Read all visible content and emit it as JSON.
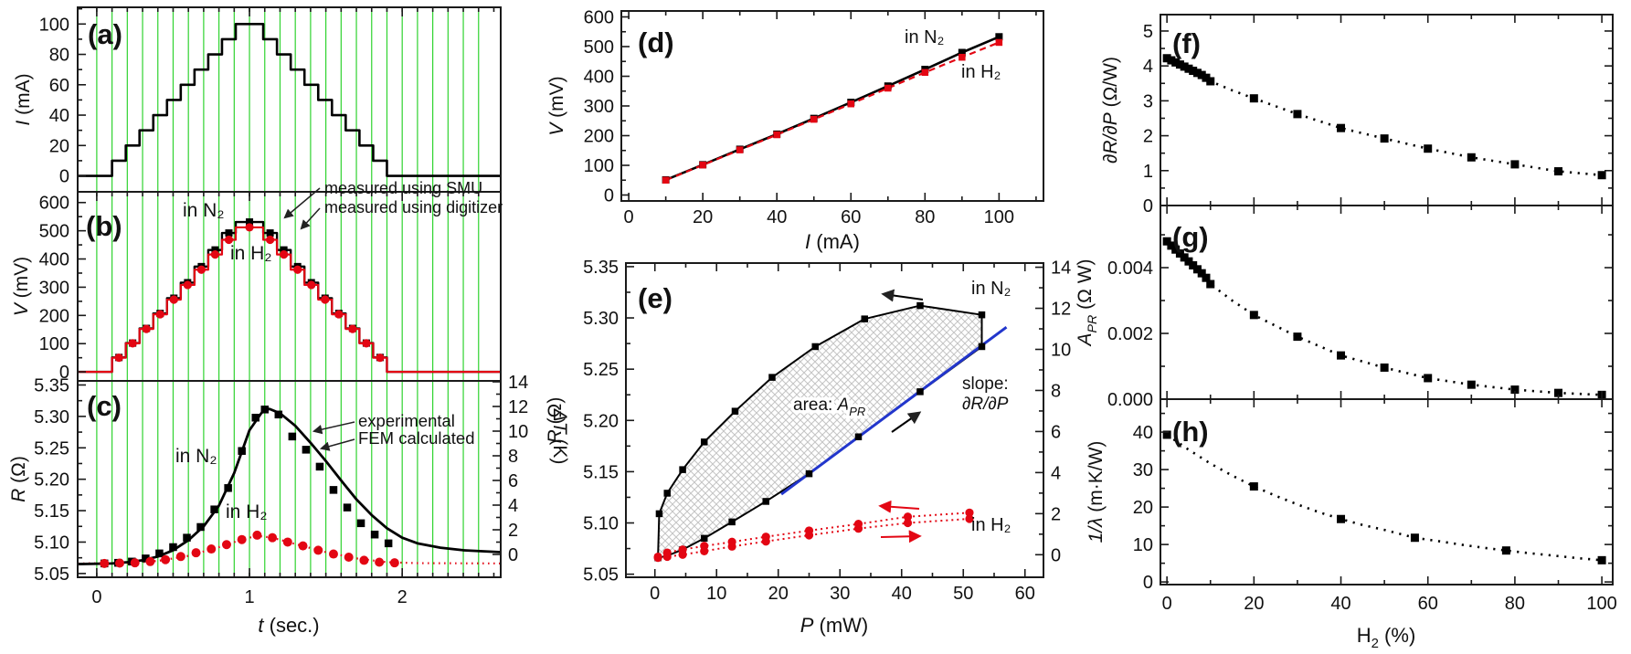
{
  "colors": {
    "black": "#000000",
    "red": "#e30613",
    "green": "#2fd32f",
    "blue": "#2236cc",
    "hatch": "#c4c4c4",
    "frame": "#1a1a1a"
  },
  "chart_data": [
    {
      "id": "a",
      "type": "line",
      "tag": "(a)",
      "ylabel": [
        {
          "t": "I",
          "i": 1
        },
        {
          "t": " (mA)"
        }
      ],
      "yticks": [
        "0",
        "20",
        "40",
        "60",
        "80",
        "100"
      ],
      "grid": "vertical-green",
      "step_times": [
        -0.125,
        0.1,
        0.19,
        0.28,
        0.37,
        0.46,
        0.55,
        0.64,
        0.73,
        0.82,
        0.91,
        1.09,
        1.18,
        1.27,
        1.36,
        1.45,
        1.54,
        1.63,
        1.72,
        1.81,
        1.9
      ],
      "t_end": 2.645,
      "values": [
        0,
        10,
        20,
        30,
        40,
        50,
        60,
        70,
        80,
        90,
        100,
        90,
        80,
        70,
        60,
        50,
        40,
        30,
        20,
        10,
        0
      ]
    },
    {
      "id": "b",
      "type": "line",
      "tag": "(b)",
      "ylabel": [
        {
          "t": "V",
          "i": 1
        },
        {
          "t": " (mV)"
        }
      ],
      "yticks": [
        "0",
        "100",
        "200",
        "300",
        "400",
        "500",
        "600"
      ],
      "grid": "vertical-green",
      "step_times": [
        -0.125,
        0.1,
        0.19,
        0.28,
        0.37,
        0.46,
        0.55,
        0.64,
        0.73,
        0.82,
        0.91,
        1.09,
        1.18,
        1.27,
        1.36,
        1.45,
        1.54,
        1.63,
        1.72,
        1.81,
        1.9
      ],
      "t_end": 2.645,
      "values_n2": [
        0,
        51,
        102,
        154,
        207,
        261,
        316,
        373,
        432,
        492,
        531,
        492,
        432,
        373,
        316,
        261,
        207,
        154,
        102,
        51,
        0
      ],
      "values_h2": [
        0,
        50,
        101,
        152,
        204,
        256,
        308,
        362,
        416,
        468,
        512,
        468,
        416,
        362,
        308,
        256,
        204,
        152,
        101,
        50,
        0
      ],
      "ann": {
        "n2": "in N₂",
        "h2": "in H₂",
        "smu": "measured using SMU",
        "dig": "measured using digitizer"
      }
    },
    {
      "id": "c",
      "type": "line",
      "tag": "(c)",
      "xlabel": [
        {
          "t": "t",
          "i": 1
        },
        {
          "t": " (sec.)"
        }
      ],
      "ylabel": [
        {
          "t": "R",
          "i": 1
        },
        {
          "t": " (Ω)"
        }
      ],
      "ylabel_right": [
        {
          "t": "ΔT",
          "i": 1
        },
        {
          "t": " (K)"
        }
      ],
      "xticks": [
        "0",
        "1",
        "2"
      ],
      "yticks": [
        "5.05",
        "5.10",
        "5.15",
        "5.20",
        "5.25",
        "5.30",
        "5.35"
      ],
      "yticks_right": [
        "0",
        "2",
        "4",
        "6",
        "8",
        "10",
        "12",
        "14"
      ],
      "grid": "vertical-green",
      "n2_line": [
        [
          -0.125,
          5.065
        ],
        [
          0.1,
          5.066
        ],
        [
          0.2,
          5.068
        ],
        [
          0.3,
          5.071
        ],
        [
          0.4,
          5.077
        ],
        [
          0.5,
          5.087
        ],
        [
          0.6,
          5.103
        ],
        [
          0.7,
          5.125
        ],
        [
          0.8,
          5.158
        ],
        [
          0.9,
          5.21
        ],
        [
          1.0,
          5.278
        ],
        [
          1.08,
          5.306
        ],
        [
          1.13,
          5.312
        ],
        [
          1.2,
          5.305
        ],
        [
          1.3,
          5.285
        ],
        [
          1.4,
          5.258
        ],
        [
          1.5,
          5.229
        ],
        [
          1.6,
          5.198
        ],
        [
          1.7,
          5.168
        ],
        [
          1.8,
          5.143
        ],
        [
          1.9,
          5.122
        ],
        [
          2.0,
          5.107
        ],
        [
          2.1,
          5.098
        ],
        [
          2.25,
          5.091
        ],
        [
          2.4,
          5.087
        ],
        [
          2.645,
          5.084
        ]
      ],
      "n2_points": [
        [
          0.05,
          5.066
        ],
        [
          0.14,
          5.067
        ],
        [
          0.23,
          5.069
        ],
        [
          0.32,
          5.074
        ],
        [
          0.41,
          5.082
        ],
        [
          0.5,
          5.092
        ],
        [
          0.59,
          5.107
        ],
        [
          0.68,
          5.124
        ],
        [
          0.77,
          5.152
        ],
        [
          0.86,
          5.186
        ],
        [
          0.95,
          5.245
        ],
        [
          1.04,
          5.298
        ],
        [
          1.1,
          5.311
        ],
        [
          1.19,
          5.303
        ],
        [
          1.28,
          5.268
        ],
        [
          1.37,
          5.247
        ],
        [
          1.46,
          5.22
        ],
        [
          1.55,
          5.183
        ],
        [
          1.64,
          5.155
        ],
        [
          1.73,
          5.13
        ],
        [
          1.82,
          5.112
        ],
        [
          1.91,
          5.098
        ]
      ],
      "h2_line": [
        [
          -0.125,
          5.066
        ],
        [
          0.2,
          5.0665
        ],
        [
          0.4,
          5.07
        ],
        [
          0.6,
          5.078
        ],
        [
          0.8,
          5.092
        ],
        [
          0.95,
          5.104
        ],
        [
          1.05,
          5.11
        ],
        [
          1.15,
          5.107
        ],
        [
          1.3,
          5.097
        ],
        [
          1.5,
          5.084
        ],
        [
          1.7,
          5.074
        ],
        [
          1.9,
          5.068
        ],
        [
          2.1,
          5.0665
        ],
        [
          2.645,
          5.066
        ]
      ],
      "h2_points": [
        [
          0.05,
          5.066
        ],
        [
          0.15,
          5.0665
        ],
        [
          0.25,
          5.067
        ],
        [
          0.35,
          5.069
        ],
        [
          0.45,
          5.072
        ],
        [
          0.55,
          5.077
        ],
        [
          0.65,
          5.083
        ],
        [
          0.75,
          5.089
        ],
        [
          0.85,
          5.096
        ],
        [
          0.95,
          5.104
        ],
        [
          1.05,
          5.111
        ],
        [
          1.15,
          5.107
        ],
        [
          1.25,
          5.1
        ],
        [
          1.35,
          5.094
        ],
        [
          1.45,
          5.087
        ],
        [
          1.55,
          5.081
        ],
        [
          1.65,
          5.076
        ],
        [
          1.75,
          5.071
        ],
        [
          1.85,
          5.068
        ],
        [
          1.95,
          5.067
        ]
      ],
      "ann": {
        "n2": "in N₂",
        "h2": "in H₂",
        "exp": "experimental",
        "fem": "FEM calculated"
      }
    },
    {
      "id": "d",
      "type": "line",
      "tag": "(d)",
      "xlabel": [
        {
          "t": "I",
          "i": 1
        },
        {
          "t": " (mA)"
        }
      ],
      "ylabel": [
        {
          "t": "V",
          "i": 1
        },
        {
          "t": " (mV)"
        }
      ],
      "xticks": [
        "0",
        "20",
        "40",
        "60",
        "80",
        "100"
      ],
      "yticks": [
        "0",
        "100",
        "200",
        "300",
        "400",
        "500",
        "600"
      ],
      "x": [
        10,
        20,
        30,
        40,
        50,
        60,
        70,
        80,
        90,
        100
      ],
      "v_n2": [
        51,
        102,
        154,
        205,
        258,
        312,
        367,
        423,
        480,
        533
      ],
      "v_h2": [
        50,
        101,
        152,
        203,
        255,
        307,
        360,
        413,
        464,
        514
      ],
      "ann": {
        "n2": "in N₂",
        "h2": "in H₂"
      }
    },
    {
      "id": "e",
      "type": "line",
      "tag": "(e)",
      "xlabel": [
        {
          "t": "P",
          "i": 1
        },
        {
          "t": " (mW)"
        }
      ],
      "ylabel": [
        {
          "t": "R",
          "i": 1
        },
        {
          "t": " (Ω)"
        }
      ],
      "xticks": [
        "0",
        "10",
        "20",
        "30",
        "40",
        "50",
        "60"
      ],
      "yticks": [
        "5.05",
        "5.10",
        "5.15",
        "5.20",
        "5.25",
        "5.30",
        "5.35"
      ],
      "yticks_right": [
        "0",
        "2",
        "4",
        "6",
        "8",
        "10",
        "12",
        "14"
      ],
      "n2_lower": [
        [
          0.5,
          5.066
        ],
        [
          2,
          5.068
        ],
        [
          4.5,
          5.074
        ],
        [
          8,
          5.085
        ],
        [
          12.5,
          5.101
        ],
        [
          18,
          5.121
        ],
        [
          25,
          5.148
        ],
        [
          33,
          5.184
        ],
        [
          43,
          5.228
        ],
        [
          53,
          5.272
        ]
      ],
      "n2_upper": [
        [
          53,
          5.303
        ],
        [
          43,
          5.312
        ],
        [
          34,
          5.299
        ],
        [
          26,
          5.272
        ],
        [
          19,
          5.242
        ],
        [
          13,
          5.209
        ],
        [
          8,
          5.179
        ],
        [
          4.5,
          5.152
        ],
        [
          2,
          5.129
        ],
        [
          0.7,
          5.109
        ]
      ],
      "blue_line": [
        [
          20.5,
          5.128
        ],
        [
          57,
          5.291
        ]
      ],
      "h2_lower": [
        [
          0.5,
          5.066
        ],
        [
          2,
          5.067
        ],
        [
          4.5,
          5.069
        ],
        [
          8,
          5.0725
        ],
        [
          12.5,
          5.077
        ],
        [
          18,
          5.082
        ],
        [
          25,
          5.088
        ],
        [
          33,
          5.0945
        ],
        [
          41,
          5.1
        ],
        [
          51,
          5.104
        ]
      ],
      "h2_upper": [
        [
          51,
          5.11
        ],
        [
          41,
          5.106
        ],
        [
          33,
          5.099
        ],
        [
          25,
          5.0925
        ],
        [
          18,
          5.0865
        ],
        [
          12.5,
          5.0815
        ],
        [
          8,
          5.0775
        ],
        [
          4.5,
          5.074
        ],
        [
          2,
          5.071
        ],
        [
          0.5,
          5.067
        ]
      ],
      "ann": {
        "n2": "in N₂",
        "h2": "in H₂",
        "slope1": "slope:",
        "slope2": [
          {
            "t": "∂R/∂P",
            "i": 1
          }
        ],
        "area": [
          {
            "t": "area: "
          },
          {
            "t": "A",
            "i": 1
          },
          {
            "t": "PR",
            "i": 1,
            "sub": 1
          }
        ]
      }
    },
    {
      "id": "f",
      "type": "scatter",
      "tag": "(f)",
      "ylabel": [
        {
          "t": "∂R/∂P",
          "i": 1
        },
        {
          "t": " (Ω/W)"
        }
      ],
      "yticks": [
        "0",
        "1",
        "2",
        "3",
        "4",
        "5"
      ],
      "x_dense": [
        0,
        1,
        2,
        3,
        4,
        5,
        6,
        7,
        8,
        9,
        10
      ],
      "v_dense": [
        4.22,
        4.16,
        4.1,
        4.04,
        3.98,
        3.92,
        3.86,
        3.8,
        3.74,
        3.66,
        3.56
      ],
      "x_sparse": [
        20,
        30,
        40,
        50,
        60,
        70,
        80,
        90,
        100
      ],
      "v_sparse": [
        3.07,
        2.62,
        2.22,
        1.92,
        1.63,
        1.38,
        1.18,
        0.98,
        0.87
      ],
      "trend_extra": [
        [
          15,
          3.3
        ]
      ]
    },
    {
      "id": "g",
      "type": "scatter",
      "tag": "(g)",
      "ylabel": [
        {
          "t": "A",
          "i": 1
        },
        {
          "t": "PR",
          "i": 1,
          "sub": 1
        },
        {
          "t": " (Ω W)"
        }
      ],
      "yticks": [
        "0.000",
        "0.002",
        "0.004"
      ],
      "x_dense": [
        0,
        1,
        2,
        3,
        4,
        5,
        6,
        7,
        8,
        9,
        10
      ],
      "v_dense": [
        0.0048,
        0.00467,
        0.00455,
        0.00443,
        0.00431,
        0.00419,
        0.00407,
        0.00395,
        0.00383,
        0.00369,
        0.0035
      ],
      "x_sparse": [
        20,
        30,
        40,
        50,
        60,
        70,
        80,
        90,
        100
      ],
      "v_sparse": [
        0.00256,
        0.0019,
        0.00133,
        0.00096,
        0.00064,
        0.00044,
        0.00029,
        0.00019,
        0.00013
      ],
      "trend_extra": [
        [
          15,
          0.003
        ]
      ]
    },
    {
      "id": "h",
      "type": "scatter",
      "tag": "(h)",
      "xlabel": [
        {
          "t": "H"
        },
        {
          "t": "2",
          "sub": 1
        },
        {
          "t": " (%)"
        }
      ],
      "ylabel": [
        {
          "t": "1/λ",
          "i": 1
        },
        {
          "t": " (m·K/W)"
        }
      ],
      "xticks": [
        "0",
        "20",
        "40",
        "60",
        "80",
        "100"
      ],
      "yticks": [
        "0",
        "10",
        "20",
        "30",
        "40"
      ],
      "points": [
        [
          0,
          39.3
        ],
        [
          20,
          25.5
        ],
        [
          40,
          16.8
        ],
        [
          57,
          11.8
        ],
        [
          78,
          8.4
        ],
        [
          100,
          5.8
        ]
      ],
      "trend": [
        [
          0,
          39.3
        ],
        [
          5,
          35.3
        ],
        [
          10,
          31.6
        ],
        [
          15,
          28.4
        ],
        [
          20,
          25.5
        ],
        [
          25,
          23.0
        ],
        [
          30,
          20.7
        ],
        [
          35,
          18.6
        ],
        [
          40,
          16.8
        ],
        [
          45,
          15.2
        ],
        [
          50,
          13.9
        ],
        [
          57,
          11.8
        ],
        [
          63,
          10.8
        ],
        [
          68,
          9.9
        ],
        [
          73,
          9.1
        ],
        [
          78,
          8.4
        ],
        [
          84,
          7.6
        ],
        [
          90,
          6.9
        ],
        [
          95,
          6.3
        ],
        [
          100,
          5.8
        ]
      ]
    }
  ]
}
